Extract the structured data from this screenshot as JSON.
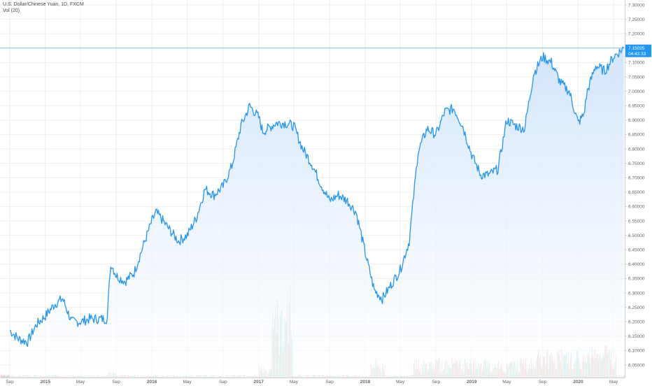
{
  "legend": {
    "symbol_title": "U.S. Dollar/Chinese Yuan, 1D, FXCM",
    "volume_title": "Vol (20)"
  },
  "price_badge": {
    "price": "7.15025",
    "countdown": "04:43:33",
    "color": "#2196f3"
  },
  "colors": {
    "line": "#2196f3",
    "area_top": "#cfe3fb",
    "area_bottom": "#ffffff",
    "grid": "#eeeeee",
    "volume_up": "#7fd1c7",
    "volume_down": "#f29a9a"
  },
  "chart_data": {
    "type": "area",
    "title": "U.S. Dollar/Chinese Yuan, 1D, FXCM",
    "ylim": [
      6.0,
      7.3
    ],
    "y_ticks": [
      7.3,
      7.25,
      7.2,
      7.15,
      7.1,
      7.05,
      7.0,
      6.95,
      6.9,
      6.85,
      6.8,
      6.75,
      6.7,
      6.65,
      6.6,
      6.55,
      6.5,
      6.45,
      6.4,
      6.35,
      6.3,
      6.25,
      6.2,
      6.15,
      6.1,
      6.05
    ],
    "y_tick_labels": [
      "7.30000",
      "7.25000",
      "7.20000",
      "7.15000",
      "7.10000",
      "7.05000",
      "7.00000",
      "6.95000",
      "6.90000",
      "6.85000",
      "6.80000",
      "6.75000",
      "6.70000",
      "6.65000",
      "6.60000",
      "6.55000",
      "6.50000",
      "6.45000",
      "6.40000",
      "6.35000",
      "6.30000",
      "6.25000",
      "6.20000",
      "6.15000",
      "6.10000",
      "6.05000"
    ],
    "xlim": [
      "2014-09-01",
      "2020-06-05"
    ],
    "x_ticks": [
      {
        "date": "2014-09-01",
        "label": "Sep"
      },
      {
        "date": "2015-01-01",
        "label": "2015"
      },
      {
        "date": "2015-05-01",
        "label": "May"
      },
      {
        "date": "2015-09-01",
        "label": "Sep"
      },
      {
        "date": "2016-01-01",
        "label": "2016"
      },
      {
        "date": "2016-05-01",
        "label": "May"
      },
      {
        "date": "2016-09-01",
        "label": "Sep"
      },
      {
        "date": "2017-01-01",
        "label": "2017"
      },
      {
        "date": "2017-05-01",
        "label": "May"
      },
      {
        "date": "2017-09-01",
        "label": "Sep"
      },
      {
        "date": "2018-01-01",
        "label": "2018"
      },
      {
        "date": "2018-05-01",
        "label": "May"
      },
      {
        "date": "2018-09-01",
        "label": "Sep"
      },
      {
        "date": "2019-01-01",
        "label": "2019"
      },
      {
        "date": "2019-05-01",
        "label": "May"
      },
      {
        "date": "2019-09-01",
        "label": "Sep"
      },
      {
        "date": "2020-01-01",
        "label": "2020"
      },
      {
        "date": "2020-05-01",
        "label": "May"
      }
    ],
    "last_price": 7.15025,
    "series": [
      {
        "name": "USD/CNY",
        "x": [
          "2014-09-01",
          "2014-10-01",
          "2014-11-01",
          "2014-12-01",
          "2015-01-01",
          "2015-02-01",
          "2015-03-01",
          "2015-04-01",
          "2015-05-01",
          "2015-06-01",
          "2015-07-01",
          "2015-08-01",
          "2015-08-11",
          "2015-08-15",
          "2015-09-01",
          "2015-10-01",
          "2015-11-01",
          "2015-12-01",
          "2016-01-01",
          "2016-01-15",
          "2016-02-01",
          "2016-03-01",
          "2016-04-01",
          "2016-05-01",
          "2016-06-01",
          "2016-07-01",
          "2016-08-01",
          "2016-09-01",
          "2016-10-01",
          "2016-11-01",
          "2016-12-01",
          "2017-01-01",
          "2017-01-15",
          "2017-02-01",
          "2017-03-01",
          "2017-04-01",
          "2017-05-01",
          "2017-06-01",
          "2017-07-01",
          "2017-08-01",
          "2017-09-01",
          "2017-10-01",
          "2017-11-01",
          "2017-12-01",
          "2018-01-01",
          "2018-02-01",
          "2018-03-01",
          "2018-04-01",
          "2018-05-01",
          "2018-06-01",
          "2018-07-01",
          "2018-08-01",
          "2018-09-01",
          "2018-10-01",
          "2018-11-01",
          "2018-12-01",
          "2019-01-01",
          "2019-02-01",
          "2019-03-01",
          "2019-04-01",
          "2019-05-01",
          "2019-06-01",
          "2019-07-01",
          "2019-08-01",
          "2019-09-01",
          "2019-10-01",
          "2019-11-01",
          "2019-12-01",
          "2020-01-01",
          "2020-01-20",
          "2020-02-01",
          "2020-03-01",
          "2020-04-01",
          "2020-05-01",
          "2020-06-05"
        ],
        "values": [
          6.17,
          6.14,
          6.13,
          6.19,
          6.22,
          6.26,
          6.28,
          6.2,
          6.2,
          6.21,
          6.21,
          6.21,
          6.38,
          6.4,
          6.36,
          6.34,
          6.37,
          6.46,
          6.55,
          6.58,
          6.56,
          6.52,
          6.48,
          6.5,
          6.56,
          6.66,
          6.64,
          6.67,
          6.74,
          6.88,
          6.95,
          6.91,
          6.86,
          6.87,
          6.89,
          6.89,
          6.88,
          6.8,
          6.75,
          6.68,
          6.62,
          6.64,
          6.62,
          6.58,
          6.44,
          6.31,
          6.28,
          6.33,
          6.38,
          6.48,
          6.79,
          6.87,
          6.85,
          6.93,
          6.94,
          6.88,
          6.78,
          6.71,
          6.71,
          6.73,
          6.9,
          6.88,
          6.87,
          7.06,
          7.12,
          7.1,
          7.03,
          7.0,
          6.89,
          6.92,
          7.0,
          7.09,
          7.07,
          7.12,
          7.15025
        ]
      }
    ],
    "volume": {
      "name": "Vol (20)",
      "note": "Volume histogram at bottom; spikes around Apr-May 2017 and Feb-2018, elevated activity late 2019 to 2020."
    }
  }
}
